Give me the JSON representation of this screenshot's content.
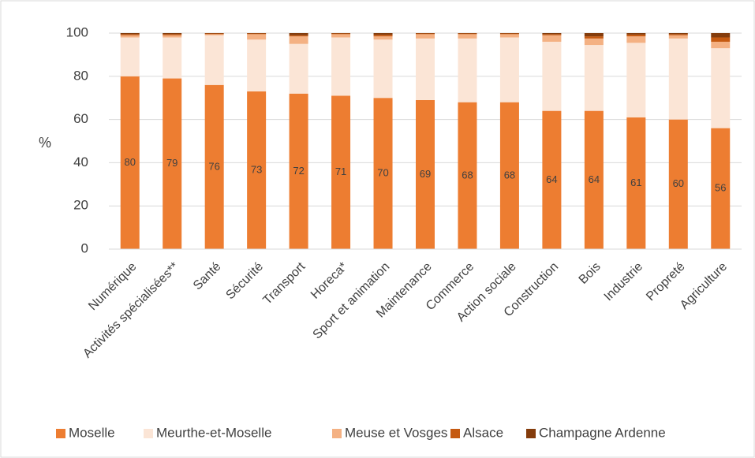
{
  "chart_data": {
    "type": "stacked_bar",
    "y_label": "%",
    "categories": [
      "Numérique",
      "Activités spécialisées**",
      "Santé",
      "Sécurité",
      "Transport",
      "Horeca*",
      "Sport et animation",
      "Maintenance",
      "Commerce",
      "Action sociale",
      "Construction",
      "Bois",
      "Industrie",
      "Propreté",
      "Agriculture"
    ],
    "series": [
      {
        "name": "Moselle",
        "color": "#ed7d31",
        "values": [
          80,
          79,
          76,
          73,
          72,
          71,
          70,
          69,
          68,
          68,
          64,
          64,
          61,
          60,
          56
        ],
        "show_labels": true
      },
      {
        "name": "Meurthe-et-Moselle",
        "color": "#fbe5d6",
        "values": [
          18,
          19,
          23,
          24,
          23,
          27,
          27,
          28.5,
          29.5,
          30,
          32,
          30.5,
          34.5,
          37.5,
          37
        ]
      },
      {
        "name": "Meuse et Vosges",
        "color": "#f4b183",
        "values": [
          1,
          1,
          0.5,
          2.5,
          3.5,
          1.5,
          1.5,
          2,
          2,
          1.5,
          3,
          3,
          3,
          1.5,
          3
        ]
      },
      {
        "name": "Alsace",
        "color": "#c55a11",
        "values": [
          0.5,
          0.5,
          0.3,
          0.3,
          0.5,
          0.3,
          0.7,
          0.3,
          0.3,
          0.3,
          0.5,
          1,
          0.8,
          0.5,
          2
        ]
      },
      {
        "name": "Champagne Ardenne",
        "color": "#843c0c",
        "values": [
          0.5,
          0.5,
          0.2,
          0.2,
          1,
          0.2,
          0.8,
          0.2,
          0.2,
          0.2,
          0.5,
          1.5,
          0.7,
          0.5,
          2
        ]
      }
    ],
    "ylim": [
      0,
      100
    ],
    "yticks": [
      0,
      20,
      40,
      60,
      80,
      100
    ],
    "grid": true,
    "legend": "bottom"
  }
}
